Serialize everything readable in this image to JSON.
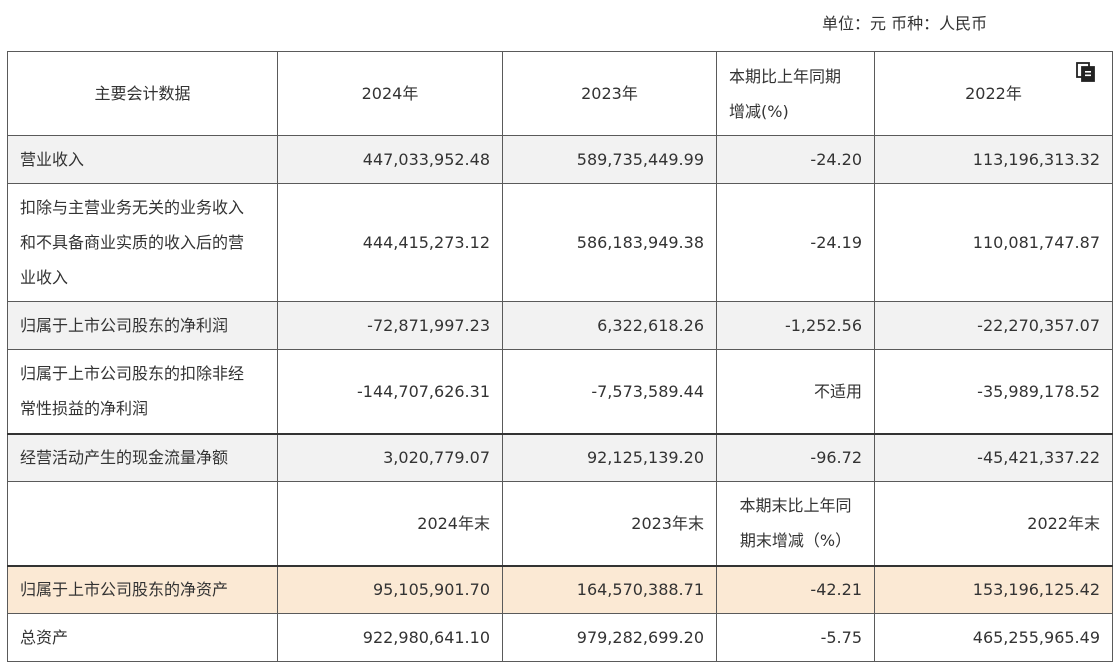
{
  "unit": {
    "text": "单位：元 币种：人民币"
  },
  "header": {
    "col_label": "主要会计数据",
    "y2024": "2024年",
    "y2023": "2023年",
    "change_line1": "本期比上年同期",
    "change_line2": "增减(%)",
    "y2022": "2022年"
  },
  "rows": [
    {
      "label": "营业收入",
      "v2024": "447,033,952.48",
      "v2023": "589,735,449.99",
      "change": "-24.20",
      "v2022": "113,196,313.32"
    },
    {
      "label_l1": "扣除与主营业务无关的业务收入",
      "label_l2": "和不具备商业实质的收入后的营",
      "label_l3": "业收入",
      "v2024": "444,415,273.12",
      "v2023": "586,183,949.38",
      "change": "-24.19",
      "v2022": "110,081,747.87"
    },
    {
      "label": "归属于上市公司股东的净利润",
      "v2024": "-72,871,997.23",
      "v2023": "6,322,618.26",
      "change": "-1,252.56",
      "v2022": "-22,270,357.07"
    },
    {
      "label_l1": "归属于上市公司股东的扣除非经",
      "label_l2": "常性损益的净利润",
      "v2024": "-144,707,626.31",
      "v2023": "-7,573,589.44",
      "change": "不适用",
      "v2022": "-35,989,178.52"
    },
    {
      "label": "经营活动产生的现金流量净额",
      "v2024": "3,020,779.07",
      "v2023": "92,125,139.20",
      "change": "-96.72",
      "v2022": "-45,421,337.22"
    }
  ],
  "header2": {
    "y2024": "2024年末",
    "y2023": "2023年末",
    "change_line1": "本期末比上年同",
    "change_line2": "期末增减（%）",
    "y2022": "2022年末"
  },
  "rows2": [
    {
      "label": "归属于上市公司股东的净资产",
      "v2024": "95,105,901.70",
      "v2023": "164,570,388.71",
      "change": "-42.21",
      "v2022": "153,196,125.42"
    },
    {
      "label": "总资产",
      "v2024": "922,980,641.10",
      "v2023": "979,282,699.20",
      "change": "-5.75",
      "v2022": "465,255,965.49"
    }
  ],
  "icons": {
    "copy": "copy-icon"
  }
}
